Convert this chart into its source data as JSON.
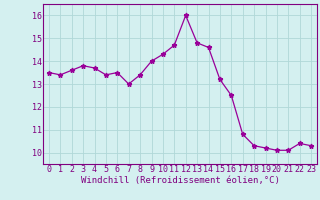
{
  "x": [
    0,
    1,
    2,
    3,
    4,
    5,
    6,
    7,
    8,
    9,
    10,
    11,
    12,
    13,
    14,
    15,
    16,
    17,
    18,
    19,
    20,
    21,
    22,
    23
  ],
  "y": [
    13.5,
    13.4,
    13.6,
    13.8,
    13.7,
    13.4,
    13.5,
    13.0,
    13.4,
    14.0,
    14.3,
    14.7,
    16.0,
    14.8,
    14.6,
    13.2,
    12.5,
    10.8,
    10.3,
    10.2,
    10.1,
    10.1,
    10.4,
    10.3
  ],
  "line_color": "#990099",
  "marker": "*",
  "markersize": 3.5,
  "linewidth": 0.9,
  "xlim": [
    -0.5,
    23.5
  ],
  "ylim": [
    9.5,
    16.5
  ],
  "yticks": [
    10,
    11,
    12,
    13,
    14,
    15,
    16
  ],
  "xticks": [
    0,
    1,
    2,
    3,
    4,
    5,
    6,
    7,
    8,
    9,
    10,
    11,
    12,
    13,
    14,
    15,
    16,
    17,
    18,
    19,
    20,
    21,
    22,
    23
  ],
  "xlabel": "Windchill (Refroidissement éolien,°C)",
  "background_color": "#d4f0f0",
  "grid_color": "#b0d8d8",
  "label_color": "#800080",
  "tick_color": "#800080",
  "xlabel_fontsize": 6.5,
  "tick_fontsize": 6.0,
  "spine_color": "#800080"
}
